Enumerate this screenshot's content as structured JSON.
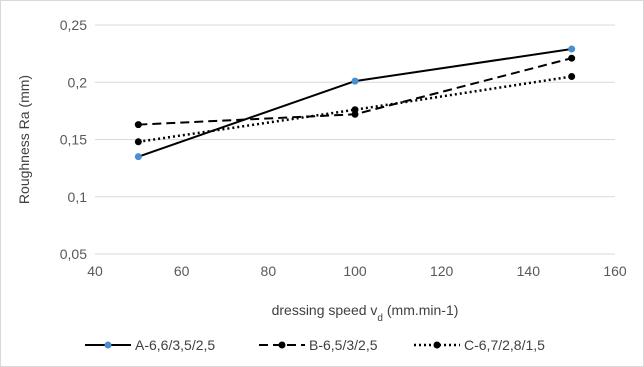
{
  "chart_data": {
    "type": "line",
    "title": "",
    "xlabel": "dressing speed v",
    "xlabel_subscript": "d",
    "xlabel_suffix": " (mm.min-1)",
    "ylabel": "Roughness Ra (mm)",
    "xlim": [
      40,
      160
    ],
    "ylim": [
      0.05,
      0.25
    ],
    "x_ticks": [
      40,
      60,
      80,
      100,
      120,
      140,
      160
    ],
    "y_ticks": [
      0.05,
      0.1,
      0.15,
      0.2,
      0.25
    ],
    "x_tick_labels": [
      "40",
      "60",
      "80",
      "100",
      "120",
      "140",
      "160"
    ],
    "y_tick_labels": [
      "0,05",
      "0,1",
      "0,15",
      "0,2",
      "0,25"
    ],
    "grid": "horizontal",
    "legend_position": "bottom",
    "series": [
      {
        "name": "A-6,6/3,5/2,5",
        "style": "solid",
        "color": "#000000",
        "marker_color": "#4a8fcf",
        "x": [
          50,
          100,
          150
        ],
        "y": [
          0.135,
          0.201,
          0.229
        ]
      },
      {
        "name": "B-6,5/3/2,5",
        "style": "dashed",
        "color": "#000000",
        "marker_color": "#000000",
        "x": [
          50,
          100,
          150
        ],
        "y": [
          0.163,
          0.172,
          0.221
        ]
      },
      {
        "name": "C-6,7/2,8/1,5",
        "style": "dotted",
        "color": "#000000",
        "marker_color": "#000000",
        "x": [
          50,
          100,
          150
        ],
        "y": [
          0.148,
          0.176,
          0.205
        ]
      }
    ]
  }
}
